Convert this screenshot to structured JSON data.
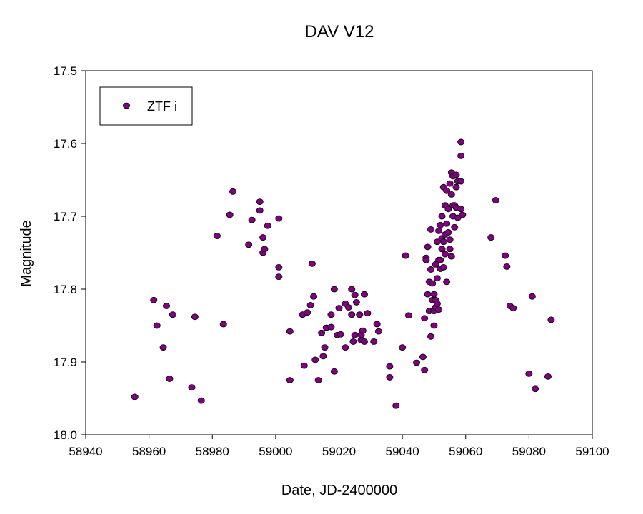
{
  "chart_data": {
    "type": "scatter",
    "title": "DAV V12",
    "xlabel": "Date, JD-2400000",
    "ylabel": "Magnitude",
    "xlim": [
      58940,
      59100
    ],
    "ylim": [
      18.0,
      17.5
    ],
    "y_inverted": true,
    "xticks": [
      "58940",
      "58960",
      "58980",
      "59000",
      "59020",
      "59040",
      "59060",
      "59080",
      "59100"
    ],
    "yticks": [
      "17.5",
      "17.6",
      "17.7",
      "17.8",
      "17.9",
      "18.0"
    ],
    "grid": false,
    "legend_position": "top-left",
    "series": [
      {
        "name": "ZTF i",
        "marker": "circle",
        "color": "#800080",
        "points": [
          [
            58955.5,
            17.948
          ],
          [
            58961.5,
            17.815
          ],
          [
            58962.5,
            17.85
          ],
          [
            58964.5,
            17.88
          ],
          [
            58965.5,
            17.823
          ],
          [
            58966.5,
            17.923
          ],
          [
            58967.5,
            17.835
          ],
          [
            58973.5,
            17.935
          ],
          [
            58974.5,
            17.838
          ],
          [
            58976.5,
            17.953
          ],
          [
            58981.5,
            17.727
          ],
          [
            58983.5,
            17.848
          ],
          [
            58985.5,
            17.698
          ],
          [
            58986.5,
            17.666
          ],
          [
            58991.5,
            17.739
          ],
          [
            58992.5,
            17.705
          ],
          [
            58995.0,
            17.68
          ],
          [
            58995.0,
            17.692
          ],
          [
            58996.0,
            17.729
          ],
          [
            58996.0,
            17.75
          ],
          [
            58996.5,
            17.745
          ],
          [
            58997.5,
            17.713
          ],
          [
            59001.0,
            17.703
          ],
          [
            59001.0,
            17.77
          ],
          [
            59001.0,
            17.783
          ],
          [
            59004.5,
            17.858
          ],
          [
            59004.5,
            17.925
          ],
          [
            59008.5,
            17.835
          ],
          [
            59009.0,
            17.905
          ],
          [
            59010.0,
            17.832
          ],
          [
            59011.0,
            17.822
          ],
          [
            59011.5,
            17.765
          ],
          [
            59012.0,
            17.81
          ],
          [
            59012.5,
            17.897
          ],
          [
            59013.5,
            17.925
          ],
          [
            59014.5,
            17.86
          ],
          [
            59015.0,
            17.892
          ],
          [
            59015.5,
            17.88
          ],
          [
            59016.0,
            17.853
          ],
          [
            59017.5,
            17.835
          ],
          [
            59017.5,
            17.852
          ],
          [
            59018.5,
            17.8
          ],
          [
            59018.5,
            17.913
          ],
          [
            59019.5,
            17.863
          ],
          [
            59020.0,
            17.826
          ],
          [
            59020.5,
            17.862
          ],
          [
            59022.0,
            17.82
          ],
          [
            59022.0,
            17.88
          ],
          [
            59023.0,
            17.825
          ],
          [
            59024.0,
            17.8
          ],
          [
            59024.0,
            17.835
          ],
          [
            59024.5,
            17.872
          ],
          [
            59025.0,
            17.808
          ],
          [
            59025.0,
            17.863
          ],
          [
            59025.5,
            17.818
          ],
          [
            59026.5,
            17.835
          ],
          [
            59027.0,
            17.863
          ],
          [
            59027.0,
            17.87
          ],
          [
            59027.5,
            17.857
          ],
          [
            59028.0,
            17.807
          ],
          [
            59028.0,
            17.872
          ],
          [
            59029.0,
            17.833
          ],
          [
            59031.0,
            17.872
          ],
          [
            59032.0,
            17.848
          ],
          [
            59032.5,
            17.858
          ],
          [
            59036.0,
            17.906
          ],
          [
            59036.0,
            17.921
          ],
          [
            59038.0,
            17.96
          ],
          [
            59040.0,
            17.88
          ],
          [
            59041.0,
            17.754
          ],
          [
            59042.0,
            17.836
          ],
          [
            59044.5,
            17.901
          ],
          [
            59046.5,
            17.893
          ],
          [
            59047.0,
            17.911
          ],
          [
            59047.0,
            17.84
          ],
          [
            59047.5,
            17.757
          ],
          [
            59047.5,
            17.76
          ],
          [
            59048.0,
            17.742
          ],
          [
            59048.0,
            17.807
          ],
          [
            59048.5,
            17.79
          ],
          [
            59048.5,
            17.83
          ],
          [
            59049.0,
            17.773
          ],
          [
            59049.0,
            17.718
          ],
          [
            59049.0,
            17.865
          ],
          [
            59049.5,
            17.792
          ],
          [
            59049.5,
            17.815
          ],
          [
            59050.0,
            17.807
          ],
          [
            59050.0,
            17.83
          ],
          [
            59050.0,
            17.85
          ],
          [
            59050.5,
            17.766
          ],
          [
            59050.5,
            17.815
          ],
          [
            59050.5,
            17.825
          ],
          [
            59051.0,
            17.785
          ],
          [
            59051.0,
            17.82
          ],
          [
            59051.0,
            17.735
          ],
          [
            59051.5,
            17.828
          ],
          [
            59051.5,
            17.76
          ],
          [
            59051.5,
            17.72
          ],
          [
            59052.0,
            17.712
          ],
          [
            59052.0,
            17.772
          ],
          [
            59052.0,
            17.76
          ],
          [
            59052.5,
            17.745
          ],
          [
            59052.5,
            17.73
          ],
          [
            59052.5,
            17.7
          ],
          [
            59053.0,
            17.66
          ],
          [
            59053.0,
            17.77
          ],
          [
            59053.0,
            17.735
          ],
          [
            59053.5,
            17.685
          ],
          [
            59053.5,
            17.725
          ],
          [
            59053.5,
            17.752
          ],
          [
            59054.0,
            17.665
          ],
          [
            59054.0,
            17.71
          ],
          [
            59054.0,
            17.79
          ],
          [
            59054.5,
            17.69
          ],
          [
            59054.5,
            17.722
          ],
          [
            59055.0,
            17.655
          ],
          [
            59055.0,
            17.745
          ],
          [
            59055.0,
            17.732
          ],
          [
            59055.5,
            17.64
          ],
          [
            59055.5,
            17.67
          ],
          [
            59055.5,
            17.755
          ],
          [
            59056.0,
            17.645
          ],
          [
            59056.0,
            17.685
          ],
          [
            59056.0,
            17.7
          ],
          [
            59056.5,
            17.685
          ],
          [
            59056.5,
            17.715
          ],
          [
            59057.0,
            17.643
          ],
          [
            59057.0,
            17.66
          ],
          [
            59057.0,
            17.688
          ],
          [
            59057.5,
            17.652
          ],
          [
            59057.5,
            17.702
          ],
          [
            59058.5,
            17.598
          ],
          [
            59058.5,
            17.652
          ],
          [
            59058.5,
            17.69
          ],
          [
            59058.5,
            17.617
          ],
          [
            59059.0,
            17.698
          ],
          [
            59068.0,
            17.729
          ],
          [
            59069.5,
            17.678
          ],
          [
            59072.5,
            17.754
          ],
          [
            59073.0,
            17.769
          ],
          [
            59074.0,
            17.823
          ],
          [
            59075.0,
            17.826
          ],
          [
            59080.0,
            17.916
          ],
          [
            59081.0,
            17.81
          ],
          [
            59082.0,
            17.937
          ],
          [
            59086.0,
            17.92
          ],
          [
            59087.0,
            17.842
          ]
        ]
      }
    ]
  }
}
